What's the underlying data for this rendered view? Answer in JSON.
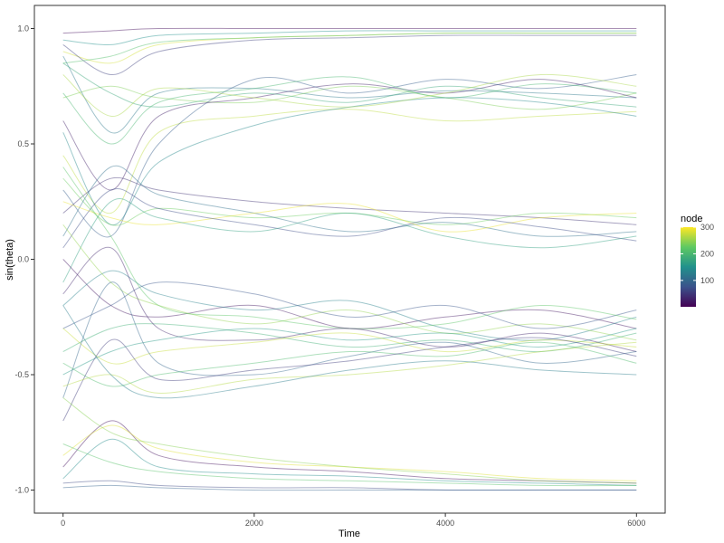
{
  "chart_data": {
    "type": "line",
    "title": "",
    "xlabel": "Time",
    "ylabel": "sin(theta)",
    "xlim": [
      -300,
      6300
    ],
    "ylim": [
      -1.1,
      1.1
    ],
    "x_ticks": [
      0,
      2000,
      4000,
      6000
    ],
    "x_tick_labels": [
      "0",
      "2000",
      "4000",
      "6000"
    ],
    "y_ticks": [
      -1.0,
      -0.5,
      0.0,
      0.5,
      1.0
    ],
    "y_tick_labels": [
      "-1.0",
      "-0.5",
      "0.0",
      "0.5",
      "1.0"
    ],
    "grid": false,
    "legend": {
      "title": "node",
      "position": "right",
      "type": "colorbar",
      "range": [
        1,
        300
      ],
      "ticks": [
        100,
        200,
        300
      ],
      "tick_labels": [
        "100",
        "200",
        "300"
      ],
      "colormap": [
        "#440154",
        "#3b528b",
        "#21918c",
        "#5ec962",
        "#fde725"
      ]
    },
    "line_alpha": 0.3,
    "series_count": 300,
    "x": [
      0,
      500,
      1000,
      2000,
      3000,
      4000,
      5000,
      6000
    ],
    "series": [
      {
        "node": 10,
        "values": [
          0.98,
          0.99,
          1.0,
          1.0,
          1.0,
          1.0,
          1.0,
          1.0
        ]
      },
      {
        "node": 150,
        "values": [
          0.95,
          0.93,
          0.97,
          0.98,
          0.99,
          0.99,
          0.99,
          0.99
        ]
      },
      {
        "node": 280,
        "values": [
          0.9,
          0.85,
          0.93,
          0.96,
          0.97,
          0.98,
          0.98,
          0.98
        ]
      },
      {
        "node": 60,
        "values": [
          0.93,
          0.8,
          0.9,
          0.95,
          0.96,
          0.97,
          0.97,
          0.97
        ]
      },
      {
        "node": 210,
        "values": [
          0.85,
          0.88,
          0.94,
          0.96,
          0.97,
          0.98,
          0.98,
          0.98
        ]
      },
      {
        "node": 120,
        "values": [
          0.88,
          0.55,
          0.72,
          0.74,
          0.7,
          0.73,
          0.72,
          0.7
        ]
      },
      {
        "node": 240,
        "values": [
          0.7,
          0.75,
          0.7,
          0.68,
          0.75,
          0.7,
          0.65,
          0.72
        ]
      },
      {
        "node": 30,
        "values": [
          0.6,
          0.3,
          0.62,
          0.7,
          0.76,
          0.72,
          0.78,
          0.7
        ]
      },
      {
        "node": 180,
        "values": [
          0.85,
          0.72,
          0.66,
          0.72,
          0.68,
          0.75,
          0.7,
          0.66
        ]
      },
      {
        "node": 270,
        "values": [
          0.45,
          0.2,
          0.55,
          0.62,
          0.65,
          0.6,
          0.62,
          0.64
        ]
      },
      {
        "node": 90,
        "values": [
          0.3,
          0.1,
          0.5,
          0.78,
          0.72,
          0.78,
          0.74,
          0.8
        ]
      },
      {
        "node": 200,
        "values": [
          0.72,
          0.5,
          0.68,
          0.74,
          0.79,
          0.7,
          0.76,
          0.72
        ]
      },
      {
        "node": 140,
        "values": [
          0.55,
          0.15,
          0.42,
          0.58,
          0.66,
          0.7,
          0.68,
          0.62
        ]
      },
      {
        "node": 260,
        "values": [
          0.8,
          0.62,
          0.74,
          0.7,
          0.66,
          0.72,
          0.8,
          0.75
        ]
      },
      {
        "node": 45,
        "values": [
          0.2,
          0.35,
          0.3,
          0.25,
          0.22,
          0.2,
          0.18,
          0.15
        ]
      },
      {
        "node": 230,
        "values": [
          0.35,
          0.15,
          0.22,
          0.18,
          0.2,
          0.15,
          0.2,
          0.18
        ]
      },
      {
        "node": 110,
        "values": [
          0.1,
          0.4,
          0.28,
          0.2,
          0.12,
          0.16,
          0.1,
          0.12
        ]
      },
      {
        "node": 290,
        "values": [
          0.25,
          0.18,
          0.15,
          0.2,
          0.24,
          0.12,
          0.18,
          0.2
        ]
      },
      {
        "node": 70,
        "values": [
          0.05,
          0.3,
          0.22,
          0.15,
          0.1,
          0.18,
          0.14,
          0.08
        ]
      },
      {
        "node": 170,
        "values": [
          -0.1,
          0.25,
          0.18,
          0.12,
          0.2,
          0.1,
          0.05,
          0.1
        ]
      },
      {
        "node": 20,
        "values": [
          0.0,
          -0.2,
          -0.25,
          -0.2,
          -0.3,
          -0.25,
          -0.22,
          -0.3
        ]
      },
      {
        "node": 130,
        "values": [
          -0.2,
          -0.05,
          -0.15,
          -0.22,
          -0.18,
          -0.3,
          -0.35,
          -0.25
        ]
      },
      {
        "node": 250,
        "values": [
          0.15,
          -0.1,
          -0.2,
          -0.28,
          -0.22,
          -0.32,
          -0.28,
          -0.35
        ]
      },
      {
        "node": 80,
        "values": [
          -0.3,
          -0.2,
          -0.1,
          -0.15,
          -0.25,
          -0.2,
          -0.3,
          -0.22
        ]
      },
      {
        "node": 190,
        "values": [
          -0.4,
          -0.3,
          -0.28,
          -0.32,
          -0.38,
          -0.35,
          -0.4,
          -0.32
        ]
      },
      {
        "node": 220,
        "values": [
          0.4,
          0.1,
          -0.2,
          -0.25,
          -0.3,
          -0.28,
          -0.2,
          -0.26
        ]
      },
      {
        "node": 35,
        "values": [
          -0.15,
          0.05,
          -0.3,
          -0.35,
          -0.3,
          -0.38,
          -0.32,
          -0.4
        ]
      },
      {
        "node": 160,
        "values": [
          -0.5,
          -0.4,
          -0.35,
          -0.3,
          -0.35,
          -0.32,
          -0.38,
          -0.3
        ]
      },
      {
        "node": 275,
        "values": [
          -0.3,
          -0.45,
          -0.4,
          -0.36,
          -0.32,
          -0.4,
          -0.35,
          -0.38
        ]
      },
      {
        "node": 100,
        "values": [
          -0.6,
          -0.1,
          -0.45,
          -0.5,
          -0.42,
          -0.36,
          -0.45,
          -0.4
        ]
      },
      {
        "node": 205,
        "values": [
          -0.45,
          -0.55,
          -0.5,
          -0.45,
          -0.4,
          -0.42,
          -0.36,
          -0.45
        ]
      },
      {
        "node": 55,
        "values": [
          -0.7,
          -0.35,
          -0.52,
          -0.48,
          -0.44,
          -0.38,
          -0.34,
          -0.42
        ]
      },
      {
        "node": 265,
        "values": [
          -0.55,
          -0.5,
          -0.58,
          -0.52,
          -0.5,
          -0.46,
          -0.4,
          -0.36
        ]
      },
      {
        "node": 125,
        "values": [
          -0.2,
          -0.5,
          -0.6,
          -0.55,
          -0.48,
          -0.44,
          -0.48,
          -0.5
        ]
      },
      {
        "node": 15,
        "values": [
          -0.9,
          -0.7,
          -0.85,
          -0.9,
          -0.92,
          -0.95,
          -0.96,
          -0.97
        ]
      },
      {
        "node": 145,
        "values": [
          -0.95,
          -0.78,
          -0.9,
          -0.93,
          -0.94,
          -0.96,
          -0.97,
          -0.98
        ]
      },
      {
        "node": 285,
        "values": [
          -0.85,
          -0.72,
          -0.82,
          -0.88,
          -0.9,
          -0.92,
          -0.95,
          -0.96
        ]
      },
      {
        "node": 65,
        "values": [
          -0.97,
          -0.96,
          -0.98,
          -0.99,
          -0.99,
          -1.0,
          -1.0,
          -1.0
        ]
      },
      {
        "node": 215,
        "values": [
          -0.8,
          -0.88,
          -0.92,
          -0.95,
          -0.96,
          -0.97,
          -0.98,
          -0.98
        ]
      },
      {
        "node": 95,
        "values": [
          -0.99,
          -0.98,
          -0.99,
          -1.0,
          -1.0,
          -1.0,
          -1.0,
          -1.0
        ]
      },
      {
        "node": 245,
        "values": [
          -0.6,
          -0.75,
          -0.8,
          -0.86,
          -0.9,
          -0.93,
          -0.96,
          -0.97
        ]
      }
    ]
  }
}
